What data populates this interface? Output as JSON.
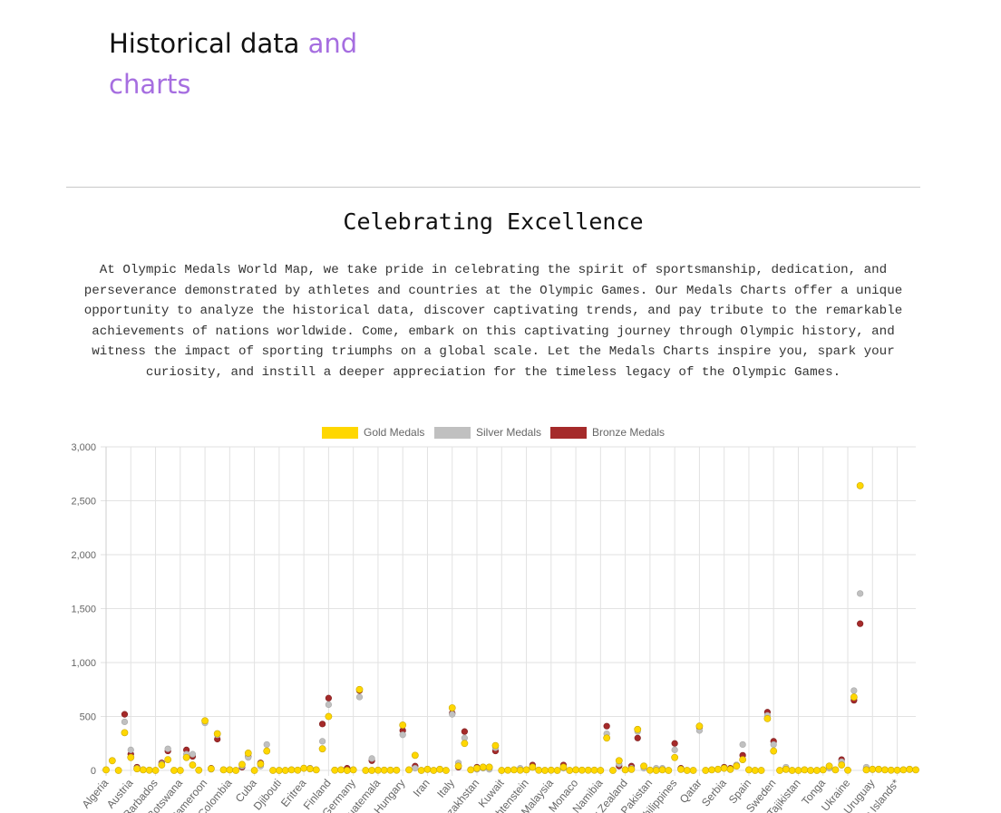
{
  "header": {
    "title_main": "Historical data",
    "title_accent_1": "and",
    "title_accent_2": "charts"
  },
  "section": {
    "title": "Celebrating Excellence",
    "text": "At Olympic Medals World Map, we take pride in celebrating the spirit of sportsmanship, dedication, and perseverance demonstrated by athletes and countries at the Olympic Games. Our Medals Charts offer a unique opportunity to analyze the historical data, discover captivating trends, and pay tribute to the remarkable achievements of nations worldwide. Come, embark on this captivating journey through Olympic history, and witness the impact of sporting triumphs on a global scale. Let the Medals Charts inspire you, spark your curiosity, and instill a deeper appreciation for the timeless legacy of the Olympic Games."
  },
  "chart_data": {
    "type": "scatter",
    "ylim": [
      0,
      3000
    ],
    "yticks": [
      0,
      500,
      1000,
      1500,
      2000,
      2500,
      3000
    ],
    "ytick_labels": [
      "0",
      "500",
      "1,000",
      "1,500",
      "2,000",
      "2,500",
      "3,000"
    ],
    "grid": true,
    "legend_position": "top-center",
    "colors": {
      "gold": "#FFD700",
      "silver": "#C0C0C0",
      "bronze": "#A52A2A"
    },
    "x_tick_labels": [
      {
        "i": 0,
        "label": "Algeria"
      },
      {
        "i": 4,
        "label": "Austria"
      },
      {
        "i": 8,
        "label": "Barbados"
      },
      {
        "i": 12,
        "label": "Botswana"
      },
      {
        "i": 16,
        "label": "Cameroon"
      },
      {
        "i": 20,
        "label": "Colombia"
      },
      {
        "i": 24,
        "label": "Cuba"
      },
      {
        "i": 28,
        "label": "Djibouti"
      },
      {
        "i": 32,
        "label": "Eritrea"
      },
      {
        "i": 36,
        "label": "Finland"
      },
      {
        "i": 40,
        "label": "Germany"
      },
      {
        "i": 44,
        "label": "Guatemala"
      },
      {
        "i": 48,
        "label": "Hungary"
      },
      {
        "i": 52,
        "label": "Iran"
      },
      {
        "i": 56,
        "label": "Italy"
      },
      {
        "i": 60,
        "label": "Kazakhstan"
      },
      {
        "i": 64,
        "label": "Kuwait"
      },
      {
        "i": 68,
        "label": "Liechtenstein"
      },
      {
        "i": 72,
        "label": "Malaysia"
      },
      {
        "i": 76,
        "label": "Monaco"
      },
      {
        "i": 80,
        "label": "Namibia"
      },
      {
        "i": 84,
        "label": "New Zealand"
      },
      {
        "i": 88,
        "label": "Pakistan"
      },
      {
        "i": 92,
        "label": "Philippines"
      },
      {
        "i": 96,
        "label": "Qatar"
      },
      {
        "i": 100,
        "label": "Serbia"
      },
      {
        "i": 104,
        "label": "Spain"
      },
      {
        "i": 108,
        "label": "Sweden"
      },
      {
        "i": 112,
        "label": "Tajikistan"
      },
      {
        "i": 116,
        "label": "Tonga"
      },
      {
        "i": 120,
        "label": "Ukraine"
      },
      {
        "i": 124,
        "label": "Uruguay"
      },
      {
        "i": 128,
        "label": "Virgin Islands*"
      }
    ],
    "series": [
      {
        "name": "Gold Medals",
        "key": "gold",
        "values": [
          5,
          90,
          0,
          350,
          120,
          15,
          5,
          2,
          0,
          50,
          100,
          0,
          0,
          120,
          50,
          2,
          460,
          15,
          340,
          5,
          5,
          0,
          55,
          160,
          0,
          60,
          180,
          0,
          0,
          0,
          5,
          2,
          20,
          15,
          5,
          200,
          500,
          2,
          5,
          0,
          5,
          750,
          0,
          0,
          2,
          2,
          2,
          2,
          420,
          5,
          140,
          0,
          10,
          0,
          10,
          0,
          580,
          40,
          250,
          5,
          20,
          30,
          30,
          230,
          0,
          2,
          5,
          2,
          5,
          30,
          2,
          0,
          2,
          0,
          30,
          0,
          5,
          2,
          2,
          2,
          0,
          300,
          0,
          90,
          5,
          10,
          380,
          40,
          2,
          0,
          5,
          0,
          120,
          10,
          0,
          0,
          410,
          0,
          5,
          10,
          20,
          10,
          40,
          100,
          5,
          0,
          0,
          480,
          180,
          0,
          10,
          0,
          0,
          5,
          0,
          0,
          5,
          40,
          5,
          50,
          2,
          680,
          2640,
          5,
          10,
          10,
          5,
          2,
          2,
          5,
          10,
          5
        ]
      },
      {
        "name": "Silver Medals",
        "key": "silver",
        "values": [
          0,
          0,
          0,
          450,
          190,
          20,
          0,
          0,
          0,
          60,
          200,
          0,
          0,
          150,
          150,
          0,
          440,
          10,
          330,
          0,
          0,
          0,
          40,
          120,
          0,
          40,
          240,
          0,
          0,
          0,
          0,
          0,
          20,
          20,
          0,
          270,
          610,
          0,
          0,
          0,
          0,
          680,
          0,
          110,
          0,
          0,
          0,
          0,
          330,
          0,
          20,
          0,
          0,
          0,
          0,
          0,
          520,
          70,
          300,
          0,
          10,
          20,
          10,
          210,
          0,
          0,
          0,
          20,
          0,
          30,
          0,
          0,
          0,
          0,
          20,
          0,
          0,
          0,
          0,
          0,
          0,
          340,
          0,
          60,
          0,
          20,
          360,
          20,
          0,
          20,
          20,
          0,
          190,
          0,
          0,
          0,
          370,
          0,
          0,
          10,
          20,
          10,
          50,
          240,
          0,
          0,
          0,
          510,
          240,
          0,
          30,
          0,
          0,
          0,
          0,
          0,
          0,
          20,
          0,
          80,
          0,
          740,
          1640,
          30,
          0,
          0,
          0,
          0,
          0,
          0,
          0,
          0
        ]
      },
      {
        "name": "Bronze Medals",
        "key": "bronze",
        "values": [
          0,
          0,
          0,
          520,
          150,
          30,
          0,
          0,
          0,
          70,
          180,
          0,
          0,
          190,
          130,
          0,
          0,
          20,
          290,
          0,
          0,
          0,
          30,
          130,
          0,
          70,
          180,
          0,
          0,
          0,
          0,
          0,
          20,
          20,
          0,
          430,
          670,
          0,
          0,
          20,
          0,
          740,
          0,
          90,
          0,
          0,
          0,
          0,
          370,
          0,
          40,
          0,
          0,
          0,
          0,
          0,
          530,
          30,
          360,
          0,
          30,
          30,
          20,
          180,
          0,
          0,
          0,
          0,
          0,
          50,
          0,
          0,
          0,
          0,
          50,
          0,
          0,
          0,
          0,
          0,
          0,
          410,
          0,
          40,
          0,
          40,
          300,
          40,
          0,
          0,
          0,
          0,
          250,
          20,
          0,
          0,
          400,
          0,
          0,
          0,
          30,
          20,
          50,
          140,
          0,
          0,
          0,
          540,
          270,
          0,
          20,
          0,
          0,
          0,
          0,
          0,
          0,
          30,
          0,
          100,
          0,
          650,
          1360,
          20,
          0,
          0,
          0,
          0,
          0,
          0,
          0,
          0
        ]
      }
    ]
  }
}
